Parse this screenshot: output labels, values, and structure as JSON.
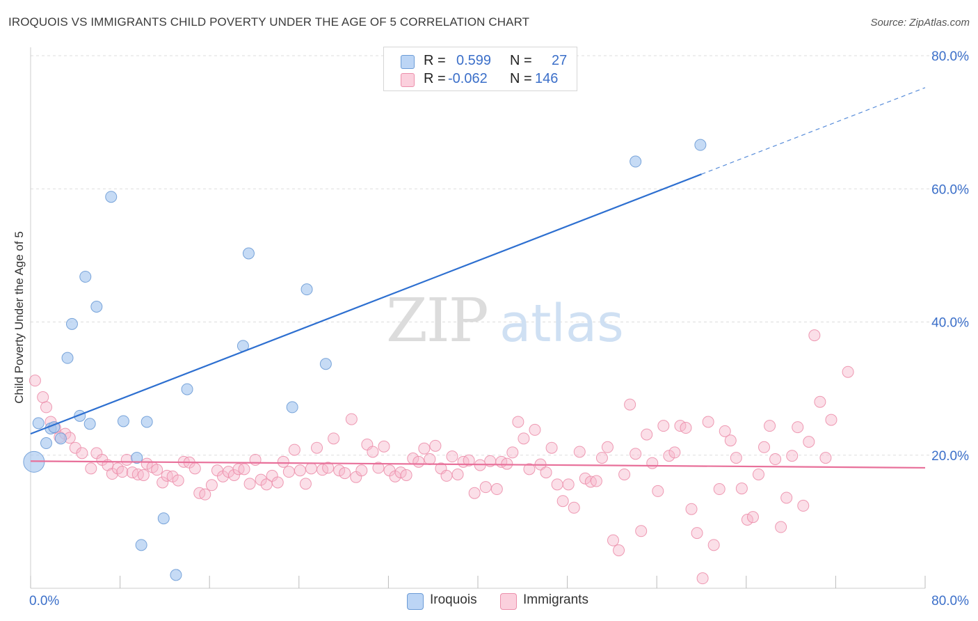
{
  "title": "IROQUOIS VS IMMIGRANTS CHILD POVERTY UNDER THE AGE OF 5 CORRELATION CHART",
  "source": "Source: ZipAtlas.com",
  "watermark": {
    "zip": "ZIP",
    "atlas": "atlas"
  },
  "legend": {
    "rows": [
      {
        "r_label": "R =",
        "r_value": "0.599",
        "n_label": "N =",
        "n_value": "27",
        "color": "#a8c8f0"
      },
      {
        "r_label": "R =",
        "r_value": "-0.062",
        "n_label": "N =",
        "n_value": "146",
        "color": "#f6b8cb"
      }
    ]
  },
  "bottom_legend": [
    {
      "label": "Iroquois",
      "color": "#a8c8f0"
    },
    {
      "label": "Immigrants",
      "color": "#f6b8cb"
    }
  ],
  "chart_data": {
    "type": "scatter",
    "title": "IROQUOIS VS IMMIGRANTS CHILD POVERTY UNDER THE AGE OF 5 CORRELATION CHART",
    "xlabel": "",
    "ylabel": "Child Poverty Under the Age of 5",
    "xlim": [
      0,
      80
    ],
    "ylim": [
      0,
      80
    ],
    "x_tick_labels": [
      "0.0%",
      "80.0%"
    ],
    "y_tick_labels": [
      "20.0%",
      "40.0%",
      "60.0%",
      "80.0%"
    ],
    "y_ticks": [
      20,
      40,
      60,
      80
    ],
    "grid": true,
    "series": [
      {
        "name": "Iroquois",
        "color": "#a8c8f0",
        "edge": "#6b9bd6",
        "trend": {
          "x0": 0,
          "y0": 23.2,
          "x1": 60,
          "y1": 62.2,
          "dash_to_x": 80,
          "dash_to_y": 75.2,
          "color": "#2d6fd0"
        },
        "points": [
          [
            0.3,
            19,
            1
          ],
          [
            0.7,
            24.8,
            0
          ],
          [
            1.4,
            21.8,
            0
          ],
          [
            1.8,
            24,
            0
          ],
          [
            2.1,
            24.2,
            0
          ],
          [
            2.7,
            22.5,
            0
          ],
          [
            3.3,
            34.6,
            0
          ],
          [
            3.7,
            39.7,
            0
          ],
          [
            4.4,
            25.9,
            0
          ],
          [
            4.9,
            46.8,
            0
          ],
          [
            5.3,
            24.7,
            0
          ],
          [
            5.9,
            42.3,
            0
          ],
          [
            7.2,
            58.8,
            0
          ],
          [
            8.3,
            25.1,
            0
          ],
          [
            9.5,
            19.6,
            0
          ],
          [
            9.9,
            6.5,
            0
          ],
          [
            10.4,
            25,
            0
          ],
          [
            11.9,
            10.5,
            0
          ],
          [
            13.0,
            2.0,
            0
          ],
          [
            14.0,
            29.9,
            0
          ],
          [
            19.0,
            36.4,
            0
          ],
          [
            19.5,
            50.3,
            0
          ],
          [
            23.4,
            27.2,
            0
          ],
          [
            24.7,
            44.9,
            0
          ],
          [
            26.4,
            33.7,
            0
          ],
          [
            54.1,
            64.1,
            0
          ],
          [
            59.9,
            66.6,
            0
          ]
        ]
      },
      {
        "name": "Immigrants",
        "color": "#f6b8cb",
        "edge": "#ec8fab",
        "trend": {
          "x0": 0,
          "y0": 19.1,
          "x1": 80,
          "y1": 18.1,
          "color": "#e8709a"
        },
        "points": [
          [
            0.4,
            31.2
          ],
          [
            1.1,
            28.7
          ],
          [
            1.4,
            27.2
          ],
          [
            1.8,
            25
          ],
          [
            2.2,
            24.1
          ],
          [
            2.6,
            22.7
          ],
          [
            3.1,
            23.2
          ],
          [
            3.5,
            22.6
          ],
          [
            4.0,
            21.1
          ],
          [
            4.6,
            20.3
          ],
          [
            5.4,
            18.0
          ],
          [
            5.9,
            20.3
          ],
          [
            6.4,
            19.3
          ],
          [
            6.9,
            18.5
          ],
          [
            7.3,
            17.2
          ],
          [
            7.8,
            18.0
          ],
          [
            8.2,
            17.5
          ],
          [
            8.6,
            19.3
          ],
          [
            9.1,
            17.4
          ],
          [
            9.6,
            17.1
          ],
          [
            10.1,
            17.0
          ],
          [
            10.4,
            18.7
          ],
          [
            10.9,
            18.2
          ],
          [
            11.3,
            17.8
          ],
          [
            11.8,
            15.9
          ],
          [
            12.2,
            16.9
          ],
          [
            12.7,
            16.8
          ],
          [
            13.2,
            16.2
          ],
          [
            13.7,
            19.0
          ],
          [
            14.2,
            18.9
          ],
          [
            14.7,
            18.0
          ],
          [
            15.1,
            14.3
          ],
          [
            15.6,
            14.1
          ],
          [
            16.2,
            15.5
          ],
          [
            16.7,
            17.7
          ],
          [
            17.2,
            16.8
          ],
          [
            17.7,
            17.5
          ],
          [
            18.2,
            17.0
          ],
          [
            18.6,
            17.9
          ],
          [
            19.1,
            17.9
          ],
          [
            19.6,
            15.7
          ],
          [
            20.1,
            19.3
          ],
          [
            20.6,
            16.3
          ],
          [
            21.1,
            15.6
          ],
          [
            21.6,
            16.9
          ],
          [
            22.1,
            15.9
          ],
          [
            22.6,
            19.0
          ],
          [
            23.1,
            17.5
          ],
          [
            23.6,
            20.8
          ],
          [
            24.1,
            17.7
          ],
          [
            24.6,
            15.7
          ],
          [
            25.1,
            18.0
          ],
          [
            25.6,
            21.1
          ],
          [
            26.1,
            17.8
          ],
          [
            26.6,
            18.1
          ],
          [
            27.1,
            22.5
          ],
          [
            27.6,
            17.7
          ],
          [
            28.1,
            17.3
          ],
          [
            28.7,
            25.4
          ],
          [
            29.1,
            16.7
          ],
          [
            29.6,
            17.7
          ],
          [
            30.1,
            21.6
          ],
          [
            30.6,
            20.5
          ],
          [
            31.1,
            18.1
          ],
          [
            31.6,
            21.3
          ],
          [
            32.1,
            17.7
          ],
          [
            32.6,
            16.8
          ],
          [
            33.1,
            17.4
          ],
          [
            33.6,
            17.0
          ],
          [
            34.2,
            19.5
          ],
          [
            34.7,
            19.0
          ],
          [
            35.2,
            21.0
          ],
          [
            35.7,
            19.4
          ],
          [
            36.2,
            21.4
          ],
          [
            36.7,
            18.0
          ],
          [
            37.2,
            16.9
          ],
          [
            37.7,
            19.8
          ],
          [
            38.2,
            17.1
          ],
          [
            38.7,
            19.0
          ],
          [
            39.2,
            19.2
          ],
          [
            39.7,
            14.3
          ],
          [
            40.2,
            18.5
          ],
          [
            40.7,
            15.2
          ],
          [
            41.1,
            19.1
          ],
          [
            41.7,
            14.9
          ],
          [
            42.1,
            19.0
          ],
          [
            42.6,
            18.7
          ],
          [
            43.1,
            20.4
          ],
          [
            43.6,
            25.0
          ],
          [
            44.1,
            22.5
          ],
          [
            44.6,
            17.9
          ],
          [
            45.1,
            23.8
          ],
          [
            45.6,
            18.6
          ],
          [
            46.1,
            17.4
          ],
          [
            46.6,
            21.1
          ],
          [
            47.1,
            15.6
          ],
          [
            47.6,
            13.1
          ],
          [
            48.1,
            15.6
          ],
          [
            48.6,
            12.1
          ],
          [
            49.1,
            20.5
          ],
          [
            49.6,
            16.5
          ],
          [
            50.1,
            16.0
          ],
          [
            50.6,
            16.1
          ],
          [
            51.1,
            19.6
          ],
          [
            51.6,
            21.2
          ],
          [
            52.1,
            7.2
          ],
          [
            52.6,
            5.7
          ],
          [
            53.1,
            17.1
          ],
          [
            53.6,
            27.6
          ],
          [
            54.1,
            20.2
          ],
          [
            54.6,
            8.6
          ],
          [
            55.1,
            23.1
          ],
          [
            55.6,
            18.8
          ],
          [
            56.1,
            14.6
          ],
          [
            56.6,
            24.4
          ],
          [
            57.1,
            19.9
          ],
          [
            57.6,
            20.4
          ],
          [
            58.1,
            24.4
          ],
          [
            58.6,
            24.1
          ],
          [
            59.1,
            11.9
          ],
          [
            59.6,
            8.3
          ],
          [
            60.1,
            1.5
          ],
          [
            60.6,
            25.0
          ],
          [
            61.1,
            6.5
          ],
          [
            61.6,
            14.9
          ],
          [
            62.1,
            23.6
          ],
          [
            62.6,
            22.2
          ],
          [
            63.1,
            19.6
          ],
          [
            63.6,
            15.0
          ],
          [
            64.1,
            10.3
          ],
          [
            64.6,
            10.7
          ],
          [
            65.1,
            17.1
          ],
          [
            65.6,
            21.2
          ],
          [
            66.1,
            24.4
          ],
          [
            66.6,
            19.4
          ],
          [
            67.1,
            9.2
          ],
          [
            67.6,
            13.6
          ],
          [
            68.1,
            19.9
          ],
          [
            68.6,
            24.2
          ],
          [
            69.1,
            12.4
          ],
          [
            69.6,
            22.0
          ],
          [
            70.1,
            38.0
          ],
          [
            70.6,
            28.0
          ],
          [
            71.1,
            19.6
          ],
          [
            71.6,
            25.3
          ],
          [
            73.1,
            32.5
          ]
        ]
      }
    ]
  }
}
